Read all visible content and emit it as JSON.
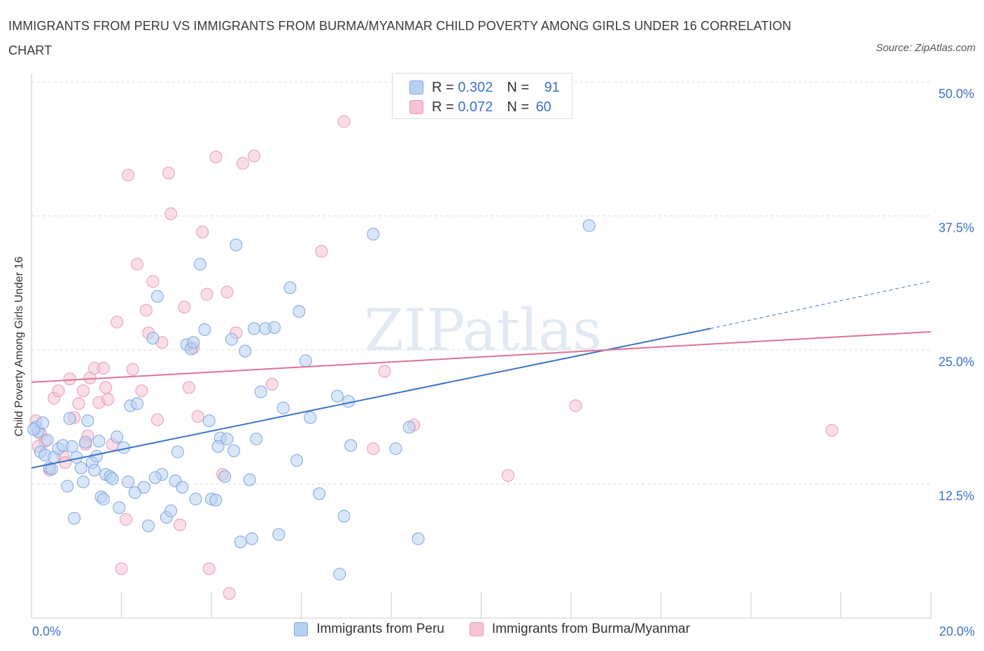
{
  "title": "IMMIGRANTS FROM PERU VS IMMIGRANTS FROM BURMA/MYANMAR CHILD POVERTY AMONG GIRLS UNDER 16 CORRELATION CHART",
  "source": "Source: ZipAtlas.com",
  "watermark": "ZIPatlas",
  "colors": {
    "blue": "#3d72c8",
    "blue_fill": "#b8d1f3",
    "pink": "#e0709a",
    "pink_fill": "#f5c3d3",
    "axis_text": "#3d72c8"
  },
  "legend_top": [
    {
      "r_label": "R = ",
      "r_value": "0.302",
      "n_label": "N = ",
      "n_value": "91"
    },
    {
      "r_label": "R = ",
      "r_value": "0.072",
      "n_label": "N = ",
      "n_value": "60"
    }
  ],
  "legend_bottom": [
    "Immigrants from Peru",
    "Immigrants from Burma/Myanmar"
  ],
  "chart_data": {
    "type": "scatter",
    "title": "IMMIGRANTS FROM PERU VS IMMIGRANTS FROM BURMA/MYANMAR CHILD POVERTY AMONG GIRLS UNDER 16 CORRELATION CHART",
    "xlabel": "",
    "ylabel": "Child Poverty Among Girls Under 16",
    "xlim": [
      0,
      20
    ],
    "ylim": [
      0,
      50
    ],
    "x_tick_labels": [
      "0.0%",
      "20.0%"
    ],
    "y_tick_labels": [
      "12.5%",
      "25.0%",
      "37.5%",
      "50.0%"
    ],
    "y_ticks": [
      12.5,
      25,
      37.5,
      50
    ],
    "grid": true,
    "legend_placement": "bottom",
    "series": [
      {
        "name": "Immigrants from Peru",
        "color": "#3d72c8",
        "trend": {
          "x": [
            0,
            15.1
          ],
          "y": [
            14.0,
            27.0
          ],
          "dashed_to": [
            20,
            31.4
          ]
        },
        "points": [
          [
            0.1,
            17.8
          ],
          [
            0.15,
            17.4
          ],
          [
            0.2,
            15.5
          ],
          [
            0.3,
            15.2
          ],
          [
            0.35,
            16.6
          ],
          [
            0.4,
            14.0
          ],
          [
            0.5,
            15.0
          ],
          [
            0.6,
            15.8
          ],
          [
            0.7,
            16.1
          ],
          [
            0.8,
            12.3
          ],
          [
            0.85,
            18.6
          ],
          [
            0.9,
            16.0
          ],
          [
            0.95,
            9.3
          ],
          [
            1.1,
            14.0
          ],
          [
            1.15,
            12.7
          ],
          [
            1.2,
            16.4
          ],
          [
            1.25,
            18.4
          ],
          [
            1.35,
            14.5
          ],
          [
            1.4,
            13.8
          ],
          [
            1.45,
            15.1
          ],
          [
            1.55,
            11.3
          ],
          [
            1.6,
            11.1
          ],
          [
            1.65,
            13.4
          ],
          [
            1.75,
            13.2
          ],
          [
            1.8,
            13.0
          ],
          [
            1.9,
            16.9
          ],
          [
            1.95,
            10.3
          ],
          [
            2.05,
            15.9
          ],
          [
            2.15,
            12.7
          ],
          [
            2.2,
            19.8
          ],
          [
            2.35,
            20.0
          ],
          [
            2.5,
            12.2
          ],
          [
            2.6,
            8.6
          ],
          [
            2.7,
            26.1
          ],
          [
            2.8,
            30.0
          ],
          [
            2.9,
            13.4
          ],
          [
            3.0,
            9.4
          ],
          [
            3.1,
            10.0
          ],
          [
            3.2,
            12.8
          ],
          [
            3.25,
            15.5
          ],
          [
            3.35,
            12.2
          ],
          [
            3.45,
            25.5
          ],
          [
            3.55,
            25.1
          ],
          [
            3.65,
            11.1
          ],
          [
            3.75,
            33.0
          ],
          [
            3.85,
            26.9
          ],
          [
            3.95,
            18.4
          ],
          [
            4.0,
            11.1
          ],
          [
            4.1,
            11.0
          ],
          [
            4.2,
            16.8
          ],
          [
            4.3,
            13.2
          ],
          [
            4.35,
            16.7
          ],
          [
            4.45,
            26.0
          ],
          [
            4.5,
            15.6
          ],
          [
            4.55,
            34.8
          ],
          [
            4.65,
            7.1
          ],
          [
            4.75,
            24.9
          ],
          [
            4.85,
            12.9
          ],
          [
            4.9,
            7.4
          ],
          [
            4.95,
            27.0
          ],
          [
            5.0,
            16.7
          ],
          [
            5.1,
            21.1
          ],
          [
            5.2,
            27.0
          ],
          [
            5.4,
            27.1
          ],
          [
            5.5,
            7.8
          ],
          [
            5.6,
            19.6
          ],
          [
            5.75,
            30.8
          ],
          [
            5.9,
            14.7
          ],
          [
            5.95,
            28.6
          ],
          [
            6.1,
            24.0
          ],
          [
            6.2,
            18.7
          ],
          [
            6.4,
            11.6
          ],
          [
            6.8,
            20.7
          ],
          [
            6.85,
            4.1
          ],
          [
            6.95,
            9.5
          ],
          [
            7.05,
            20.2
          ],
          [
            7.1,
            16.1
          ],
          [
            7.6,
            35.8
          ],
          [
            8.1,
            15.8
          ],
          [
            8.4,
            17.8
          ],
          [
            8.6,
            7.4
          ],
          [
            12.4,
            36.6
          ],
          [
            0.05,
            17.6
          ],
          [
            0.25,
            18.2
          ],
          [
            2.75,
            13.1
          ],
          [
            1.0,
            15.0
          ],
          [
            3.6,
            25.7
          ],
          [
            0.45,
            13.9
          ],
          [
            2.3,
            11.7
          ],
          [
            1.5,
            16.5
          ],
          [
            4.15,
            16.0
          ]
        ]
      },
      {
        "name": "Immigrants from Burma/Myanmar",
        "color": "#e0709a",
        "trend": {
          "x": [
            0,
            20
          ],
          "y": [
            22.0,
            26.7
          ]
        },
        "points": [
          [
            0.1,
            18.4
          ],
          [
            0.2,
            17.2
          ],
          [
            0.3,
            16.5
          ],
          [
            0.4,
            13.8
          ],
          [
            0.5,
            20.5
          ],
          [
            0.6,
            21.2
          ],
          [
            0.7,
            15.1
          ],
          [
            0.75,
            14.5
          ],
          [
            0.85,
            22.3
          ],
          [
            0.95,
            18.7
          ],
          [
            1.05,
            20.0
          ],
          [
            1.15,
            21.2
          ],
          [
            1.25,
            17.0
          ],
          [
            1.3,
            22.4
          ],
          [
            1.4,
            23.3
          ],
          [
            1.5,
            20.1
          ],
          [
            1.6,
            23.3
          ],
          [
            1.65,
            21.5
          ],
          [
            1.7,
            20.4
          ],
          [
            1.8,
            16.2
          ],
          [
            1.9,
            27.6
          ],
          [
            2.0,
            4.6
          ],
          [
            2.1,
            9.2
          ],
          [
            2.15,
            41.3
          ],
          [
            2.25,
            23.2
          ],
          [
            2.35,
            33.0
          ],
          [
            2.45,
            21.2
          ],
          [
            2.55,
            28.7
          ],
          [
            2.6,
            26.6
          ],
          [
            2.7,
            31.4
          ],
          [
            2.8,
            18.5
          ],
          [
            2.9,
            25.7
          ],
          [
            3.05,
            41.5
          ],
          [
            3.1,
            37.7
          ],
          [
            3.3,
            8.7
          ],
          [
            3.4,
            29.0
          ],
          [
            3.5,
            21.5
          ],
          [
            3.6,
            25.2
          ],
          [
            3.7,
            18.8
          ],
          [
            3.8,
            36.0
          ],
          [
            3.9,
            30.2
          ],
          [
            3.95,
            4.6
          ],
          [
            4.1,
            43.0
          ],
          [
            4.25,
            13.4
          ],
          [
            4.35,
            30.4
          ],
          [
            4.4,
            2.3
          ],
          [
            4.55,
            26.6
          ],
          [
            4.7,
            42.4
          ],
          [
            4.95,
            43.1
          ],
          [
            5.35,
            21.8
          ],
          [
            6.45,
            34.2
          ],
          [
            6.95,
            46.3
          ],
          [
            7.6,
            15.8
          ],
          [
            7.85,
            23.0
          ],
          [
            8.5,
            18.0
          ],
          [
            10.6,
            13.3
          ],
          [
            12.1,
            19.8
          ],
          [
            17.8,
            17.5
          ],
          [
            0.15,
            16.0
          ],
          [
            1.2,
            16.2
          ]
        ]
      }
    ]
  }
}
